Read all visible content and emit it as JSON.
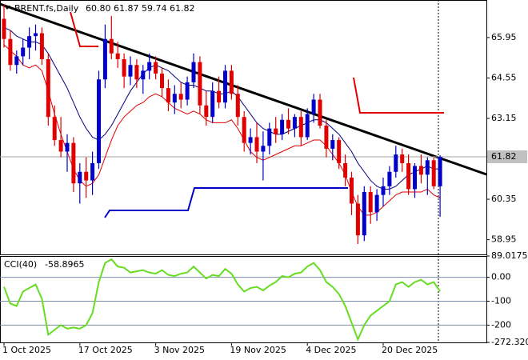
{
  "chart_data": [
    {
      "type": "candlestick",
      "title": "BRENT.fs,Daily",
      "categories": [
        "1 Oct 2025",
        null,
        null,
        null,
        null,
        null,
        null,
        null,
        null,
        null,
        null,
        null,
        "17 Oct 2025",
        null,
        null,
        null,
        null,
        null,
        null,
        null,
        null,
        null,
        null,
        null,
        "3 Nov 2025",
        null,
        null,
        null,
        null,
        null,
        null,
        null,
        null,
        null,
        null,
        null,
        "19 Nov 2025",
        null,
        null,
        null,
        null,
        null,
        null,
        null,
        null,
        null,
        null,
        null,
        "4 Dec 2025",
        null,
        null,
        null,
        null,
        null,
        null,
        null,
        null,
        null,
        null,
        null,
        "20 Dec 2025",
        null,
        null,
        null,
        null,
        null,
        null,
        null,
        null,
        null
      ],
      "open": [
        66.6,
        65.9,
        65.0,
        65.3,
        65.6,
        66.0,
        66.1,
        65.2,
        63.2,
        62.4,
        62.0,
        62.3,
        60.9,
        61.3,
        61.0,
        61.6,
        64.5,
        65.9,
        65.4,
        65.2,
        64.6,
        65.0,
        64.5,
        64.8,
        65.1,
        64.7,
        64.2,
        63.7,
        64.0,
        63.8,
        64.4,
        65.1,
        63.6,
        63.2,
        64.1,
        63.7,
        64.8,
        64.0,
        63.2,
        62.3,
        62.5,
        62.0,
        62.2,
        62.8,
        62.6,
        63.1,
        62.8,
        63.2,
        62.5,
        63.3,
        63.8,
        62.9,
        62.1,
        62.4,
        61.6,
        61.1,
        60.2,
        59.1,
        60.6,
        59.9,
        60.5,
        60.8,
        61.3,
        61.9,
        61.6,
        60.7,
        61.5,
        61.2,
        61.7,
        60.8
      ],
      "high": [
        67.1,
        66.2,
        65.5,
        65.9,
        66.3,
        66.4,
        66.3,
        65.4,
        63.6,
        63.2,
        62.6,
        62.5,
        61.6,
        61.8,
        62.0,
        64.8,
        66.4,
        66.7,
        65.8,
        65.4,
        65.3,
        65.2,
        65.0,
        65.4,
        65.3,
        64.9,
        64.5,
        64.3,
        64.4,
        64.6,
        65.4,
        65.3,
        64.1,
        64.4,
        64.6,
        65.0,
        65.0,
        64.3,
        63.4,
        62.8,
        63.0,
        62.7,
        63.0,
        63.2,
        63.3,
        63.5,
        63.3,
        63.4,
        63.5,
        64.0,
        64.0,
        63.1,
        62.6,
        62.5,
        61.9,
        61.3,
        60.5,
        60.8,
        60.8,
        60.7,
        61.1,
        61.5,
        62.2,
        62.1,
        61.9,
        61.6,
        61.9,
        61.8,
        61.8,
        61.87
      ],
      "low": [
        65.6,
        64.8,
        64.7,
        65.0,
        65.2,
        65.5,
        65.0,
        62.9,
        62.2,
        61.8,
        61.3,
        60.6,
        60.2,
        60.4,
        60.5,
        61.4,
        64.2,
        65.2,
        64.9,
        64.2,
        64.3,
        64.2,
        64.0,
        64.5,
        64.5,
        63.9,
        63.4,
        63.3,
        63.5,
        63.6,
        64.2,
        63.3,
        62.9,
        63.0,
        63.5,
        63.5,
        63.8,
        62.9,
        62.0,
        61.9,
        61.6,
        61.0,
        61.9,
        62.3,
        62.4,
        62.6,
        62.5,
        62.2,
        62.4,
        63.0,
        62.8,
        61.8,
        61.7,
        61.4,
        60.8,
        59.8,
        58.8,
        58.9,
        59.5,
        59.6,
        60.1,
        60.5,
        61.1,
        61.3,
        60.5,
        60.4,
        60.9,
        60.5,
        60.7,
        59.74
      ],
      "close": [
        65.9,
        65.0,
        65.3,
        65.6,
        66.0,
        66.1,
        65.2,
        63.2,
        62.4,
        62.0,
        62.3,
        60.9,
        61.3,
        61.0,
        61.6,
        64.5,
        65.9,
        65.4,
        65.2,
        64.6,
        65.0,
        64.5,
        64.8,
        65.1,
        64.7,
        64.2,
        63.7,
        64.0,
        63.8,
        64.4,
        65.1,
        63.6,
        63.2,
        64.1,
        63.7,
        64.8,
        64.0,
        63.2,
        62.3,
        62.5,
        62.0,
        62.2,
        62.8,
        62.6,
        63.1,
        62.8,
        63.2,
        62.5,
        63.3,
        63.8,
        62.9,
        62.1,
        62.4,
        61.6,
        61.1,
        60.2,
        59.1,
        60.6,
        59.9,
        60.5,
        60.8,
        61.3,
        61.9,
        61.6,
        60.7,
        61.5,
        61.2,
        61.7,
        60.8,
        61.82
      ],
      "last_bar_labels": {
        "open": "60.80",
        "high": "61.87",
        "low": "59.74",
        "close": "61.82"
      },
      "up_color": "#0000c8",
      "down_color": "#e00000",
      "lines": [
        {
          "color": "#000080",
          "values": [
            66.3,
            66.2,
            66.0,
            65.9,
            65.8,
            65.8,
            65.7,
            65.4,
            65.0,
            64.6,
            64.2,
            63.7,
            63.2,
            62.8,
            62.5,
            62.4,
            62.6,
            62.9,
            63.3,
            63.7,
            64.1,
            64.4,
            64.7,
            64.9,
            65.0,
            64.9,
            64.8,
            64.6,
            64.4,
            64.3,
            64.3,
            64.2,
            64.1,
            64.1,
            64.0,
            64.0,
            64.1,
            63.9,
            63.6,
            63.3,
            63.0,
            62.8,
            62.7,
            62.6,
            62.6,
            62.7,
            62.8,
            62.9,
            63.0,
            63.1,
            63.1,
            63.0,
            62.8,
            62.6,
            62.3,
            62.0,
            61.6,
            61.3,
            61.0,
            60.8,
            60.7,
            60.7,
            60.8,
            61.0,
            61.2,
            61.3,
            61.4,
            61.5,
            61.4,
            61.4
          ]
        },
        {
          "color": "#e00000",
          "values": [
            65.7,
            65.5,
            65.3,
            65.0,
            64.9,
            65.0,
            64.8,
            64.1,
            63.3,
            62.6,
            62.0,
            61.4,
            61.0,
            60.8,
            60.9,
            61.2,
            61.8,
            62.4,
            62.9,
            63.2,
            63.4,
            63.6,
            63.7,
            63.9,
            64.0,
            63.9,
            63.7,
            63.5,
            63.4,
            63.3,
            63.4,
            63.3,
            63.1,
            63.0,
            63.0,
            63.0,
            63.1,
            62.8,
            62.4,
            62.0,
            61.8,
            61.7,
            61.8,
            61.9,
            62.0,
            62.1,
            62.2,
            62.2,
            62.3,
            62.4,
            62.4,
            62.2,
            61.9,
            61.6,
            61.2,
            60.6,
            60.1,
            59.8,
            59.8,
            59.9,
            60.1,
            60.3,
            60.5,
            60.6,
            60.6,
            60.6,
            60.6,
            60.7,
            60.5,
            60.4
          ]
        }
      ],
      "ylim": [
        58.44,
        67.25
      ],
      "yticks": [
        58.95,
        60.35,
        63.15,
        64.55,
        65.95
      ]
    },
    {
      "type": "line",
      "title": "CCI(40)",
      "color": "#66dd22",
      "values": [
        -40,
        -110,
        -120,
        -60,
        -45,
        -30,
        -90,
        -240,
        -220,
        -200,
        -215,
        -210,
        -215,
        -200,
        -150,
        -20,
        60,
        75,
        45,
        40,
        20,
        25,
        30,
        20,
        15,
        30,
        10,
        5,
        15,
        20,
        45,
        20,
        -5,
        10,
        5,
        35,
        15,
        -30,
        -60,
        -45,
        -40,
        -55,
        -35,
        -20,
        5,
        0,
        15,
        20,
        45,
        60,
        30,
        -20,
        -40,
        -70,
        -120,
        -190,
        -260,
        -200,
        -160,
        -140,
        -120,
        -100,
        -30,
        -20,
        -40,
        -20,
        -10,
        -30,
        -20,
        -58.8965
      ],
      "ylim": [
        -272.32,
        89.0175
      ],
      "yticks": [
        {
          "value": -272.32,
          "label": "-272.320"
        },
        -200,
        -100,
        {
          "value": 0,
          "label": "0.00"
        },
        89.0175
      ]
    }
  ]
}
